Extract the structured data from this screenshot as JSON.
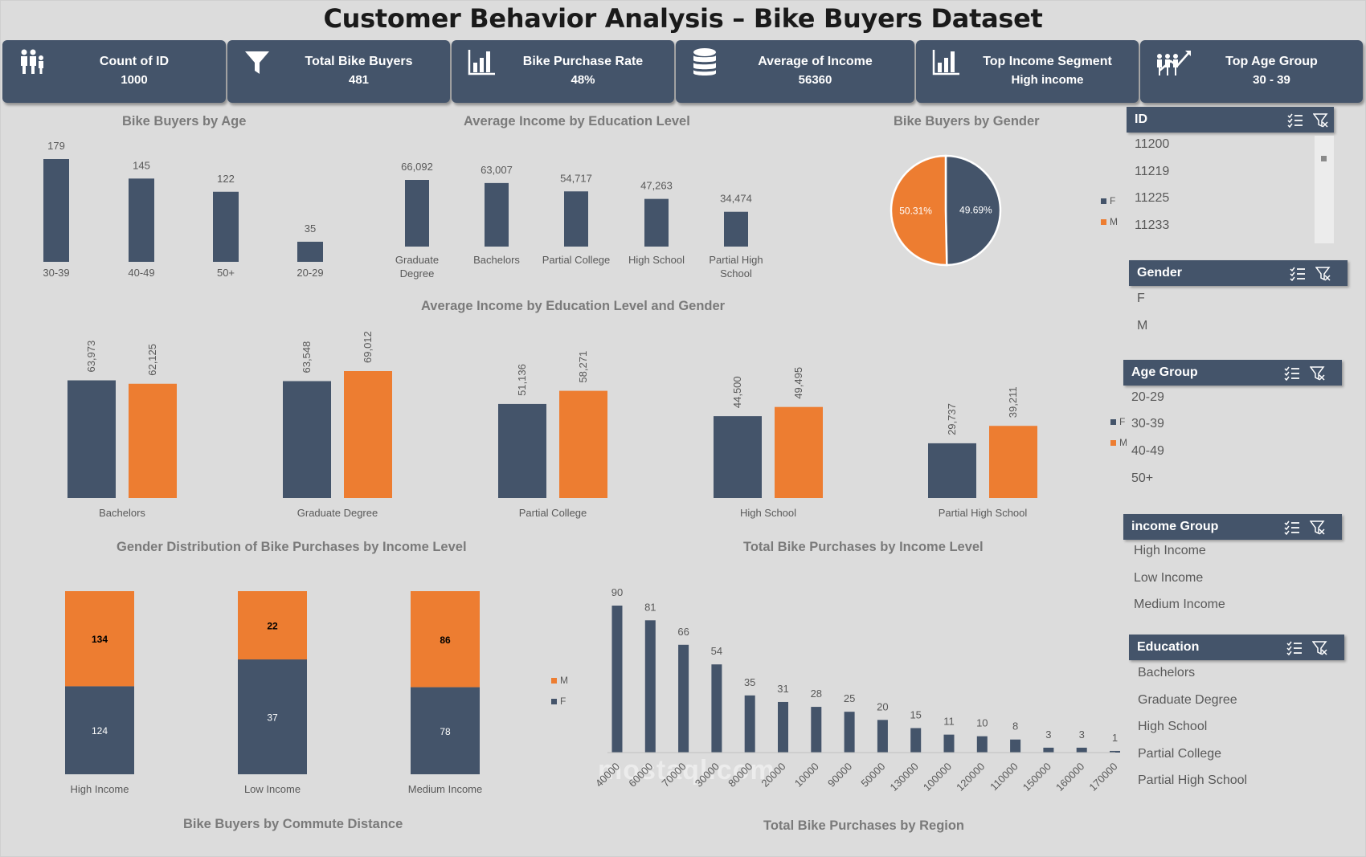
{
  "title": "Customer Behavior Analysis – Bike Buyers Dataset",
  "colors": {
    "navy": "#44546a",
    "orange": "#ed7d31",
    "background": "#dcdcdc"
  },
  "kpis": [
    {
      "label": "Count of ID",
      "value": "1000",
      "icon": "family-icon"
    },
    {
      "label": "Total Bike Buyers",
      "value": "481",
      "icon": "filter-funnel-icon"
    },
    {
      "label": "Bike Purchase Rate",
      "value": "48%",
      "icon": "bar-chart-icon"
    },
    {
      "label": "Average of Income",
      "value": "56360",
      "icon": "database-icon"
    },
    {
      "label": "Top Income Segment",
      "value": "High income",
      "icon": "bar-chart-icon"
    },
    {
      "label": "Top Age Group",
      "value": "30 - 39",
      "icon": "growth-people-icon"
    }
  ],
  "chart_titles": {
    "age": "Bike Buyers by Age",
    "education": "Average Income by Education Level",
    "gender": "Bike Buyers by Gender",
    "edu_gender": "Average Income  by Education Level and Gender",
    "income_gender": "Gender Distribution of Bike Purchases by Income Level",
    "income_level": "Total Bike Purchases by Income Level",
    "commute": "Bike Buyers by Commute Distance",
    "region": "Total Bike Purchases by Region"
  },
  "chart_data": [
    {
      "id": "age",
      "type": "bar",
      "categories": [
        "30-39",
        "40-49",
        "50+",
        "20-29"
      ],
      "values": [
        179,
        145,
        122,
        35
      ],
      "labels": [
        "179",
        "145",
        "122",
        "35"
      ]
    },
    {
      "id": "education",
      "type": "bar",
      "categories": [
        [
          "Graduate",
          "Degree"
        ],
        [
          "Bachelors"
        ],
        [
          "Partial College"
        ],
        [
          "High School"
        ],
        [
          "Partial High",
          "School"
        ]
      ],
      "values": [
        66092,
        63007,
        54717,
        47263,
        34474
      ],
      "labels": [
        "66,092",
        "63,007",
        "54,717",
        "47,263",
        "34,474"
      ]
    },
    {
      "id": "gender",
      "type": "pie",
      "slices": [
        {
          "name": "F",
          "value": 49.69,
          "label": "49.69%"
        },
        {
          "name": "M",
          "value": 50.31,
          "label": "50.31%"
        }
      ],
      "legend": [
        "F",
        "M"
      ]
    },
    {
      "id": "edu_gender",
      "type": "bar",
      "categories": [
        "Bachelors",
        "Graduate Degree",
        "Partial College",
        "High School",
        "Partial High School"
      ],
      "series": [
        {
          "name": "F",
          "values": [
            63973,
            63548,
            51136,
            44500,
            29737
          ],
          "labels": [
            "63,973",
            "63,548",
            "51,136",
            "44,500",
            "29,737"
          ]
        },
        {
          "name": "M",
          "values": [
            62125,
            69012,
            58271,
            49495,
            39211
          ],
          "labels": [
            "62,125",
            "69,012",
            "58,271",
            "49,495",
            "39,211"
          ]
        }
      ],
      "legend": [
        "F",
        "M"
      ]
    },
    {
      "id": "income_gender",
      "type": "bar",
      "stacked": true,
      "categories": [
        "High Income",
        "Low Income",
        "Medium Income"
      ],
      "series": [
        {
          "name": "F",
          "values": [
            124,
            37,
            78
          ]
        },
        {
          "name": "M",
          "values": [
            134,
            22,
            86
          ]
        }
      ],
      "legend": [
        "M",
        "F"
      ]
    },
    {
      "id": "income_level",
      "type": "bar",
      "categories": [
        "40000",
        "60000",
        "70000",
        "30000",
        "80000",
        "20000",
        "10000",
        "90000",
        "50000",
        "130000",
        "100000",
        "120000",
        "110000",
        "150000",
        "160000",
        "170000"
      ],
      "values": [
        90,
        81,
        66,
        54,
        35,
        31,
        28,
        25,
        20,
        15,
        11,
        10,
        8,
        3,
        3,
        1
      ]
    }
  ],
  "slicers": [
    {
      "title": "ID",
      "items": [
        "11200",
        "11219",
        "11225",
        "11233"
      ]
    },
    {
      "title": "Gender",
      "items": [
        "F",
        "M"
      ]
    },
    {
      "title": "Age Group",
      "items": [
        "20-29",
        "30-39",
        "40-49",
        "50+"
      ]
    },
    {
      "title": "income Group",
      "items": [
        "High Income",
        "Low Income",
        "Medium Income"
      ]
    },
    {
      "title": "Education",
      "items": [
        "Bachelors",
        "Graduate Degree",
        "High School",
        "Partial College",
        "Partial High School"
      ]
    }
  ],
  "watermark": "mostaql.com"
}
